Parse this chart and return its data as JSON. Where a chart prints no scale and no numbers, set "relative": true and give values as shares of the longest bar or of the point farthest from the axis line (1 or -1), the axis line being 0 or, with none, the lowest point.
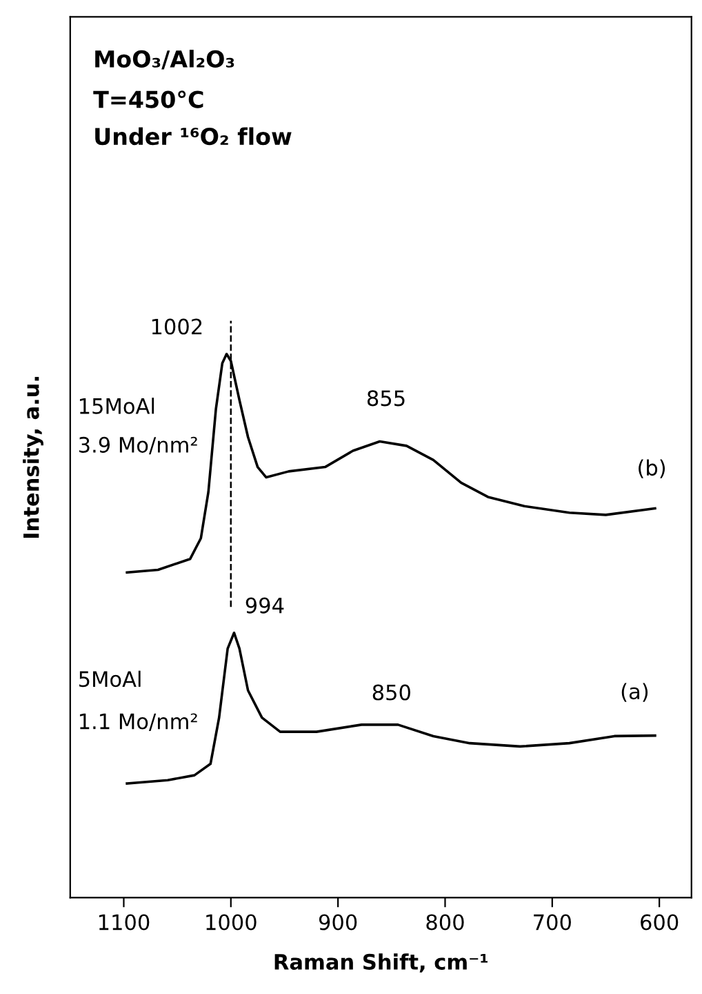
{
  "chart_data": {
    "type": "line",
    "relative": true,
    "xlabel": "Raman Shift, cm⁻¹",
    "ylabel": "Intensity, a.u.",
    "xlim": [
      1150,
      570
    ],
    "xticks": [
      1100,
      1000,
      900,
      800,
      700,
      600
    ],
    "grid": false,
    "legend": false,
    "tick_labels": "x",
    "marker": "none",
    "line_style": "solid",
    "series": [
      {
        "color": "#000000",
        "x": [
          1097,
          1068,
          1038,
          1028,
          1021,
          1014,
          1008,
          1004,
          1000,
          992,
          984,
          975,
          967,
          946,
          912,
          886,
          861,
          836,
          811,
          785,
          760,
          726,
          684,
          650,
          604
        ],
        "values": [
          0.598,
          0.603,
          0.623,
          0.661,
          0.746,
          0.898,
          0.983,
          1.0,
          0.987,
          0.915,
          0.847,
          0.792,
          0.773,
          0.784,
          0.792,
          0.822,
          0.839,
          0.831,
          0.805,
          0.763,
          0.737,
          0.72,
          0.708,
          0.704,
          0.716
        ]
      },
      {
        "color": "#000000",
        "x": [
          1097,
          1059,
          1034,
          1019,
          1011,
          1003,
          997,
          992,
          984,
          971,
          954,
          920,
          878,
          844,
          811,
          777,
          730,
          684,
          642,
          604
        ],
        "values": [
          0.21,
          0.216,
          0.225,
          0.246,
          0.331,
          0.458,
          0.487,
          0.458,
          0.381,
          0.331,
          0.305,
          0.305,
          0.318,
          0.318,
          0.297,
          0.284,
          0.278,
          0.284,
          0.297,
          0.298
        ]
      }
    ],
    "ref_lines": [
      {
        "axis": "x",
        "value": 1000,
        "color": "#000000",
        "line_style": "dashed"
      }
    ],
    "annotations": [
      "MoO₃/Al₂O₃",
      "T=450°C",
      "Under ¹⁶O₂ flow",
      "15MoAl",
      "3.9 Mo/nm²",
      "5MoAl",
      "1.1 Mo/nm²",
      "(b)",
      "(a)",
      {
        "text": "1002",
        "x": 1004,
        "y": 1.0
      },
      {
        "text": "855",
        "x": 855,
        "y": 0.84
      },
      {
        "text": "994",
        "x": 997,
        "y": 0.487
      },
      {
        "text": "850",
        "x": 850,
        "y": 0.32
      }
    ]
  }
}
